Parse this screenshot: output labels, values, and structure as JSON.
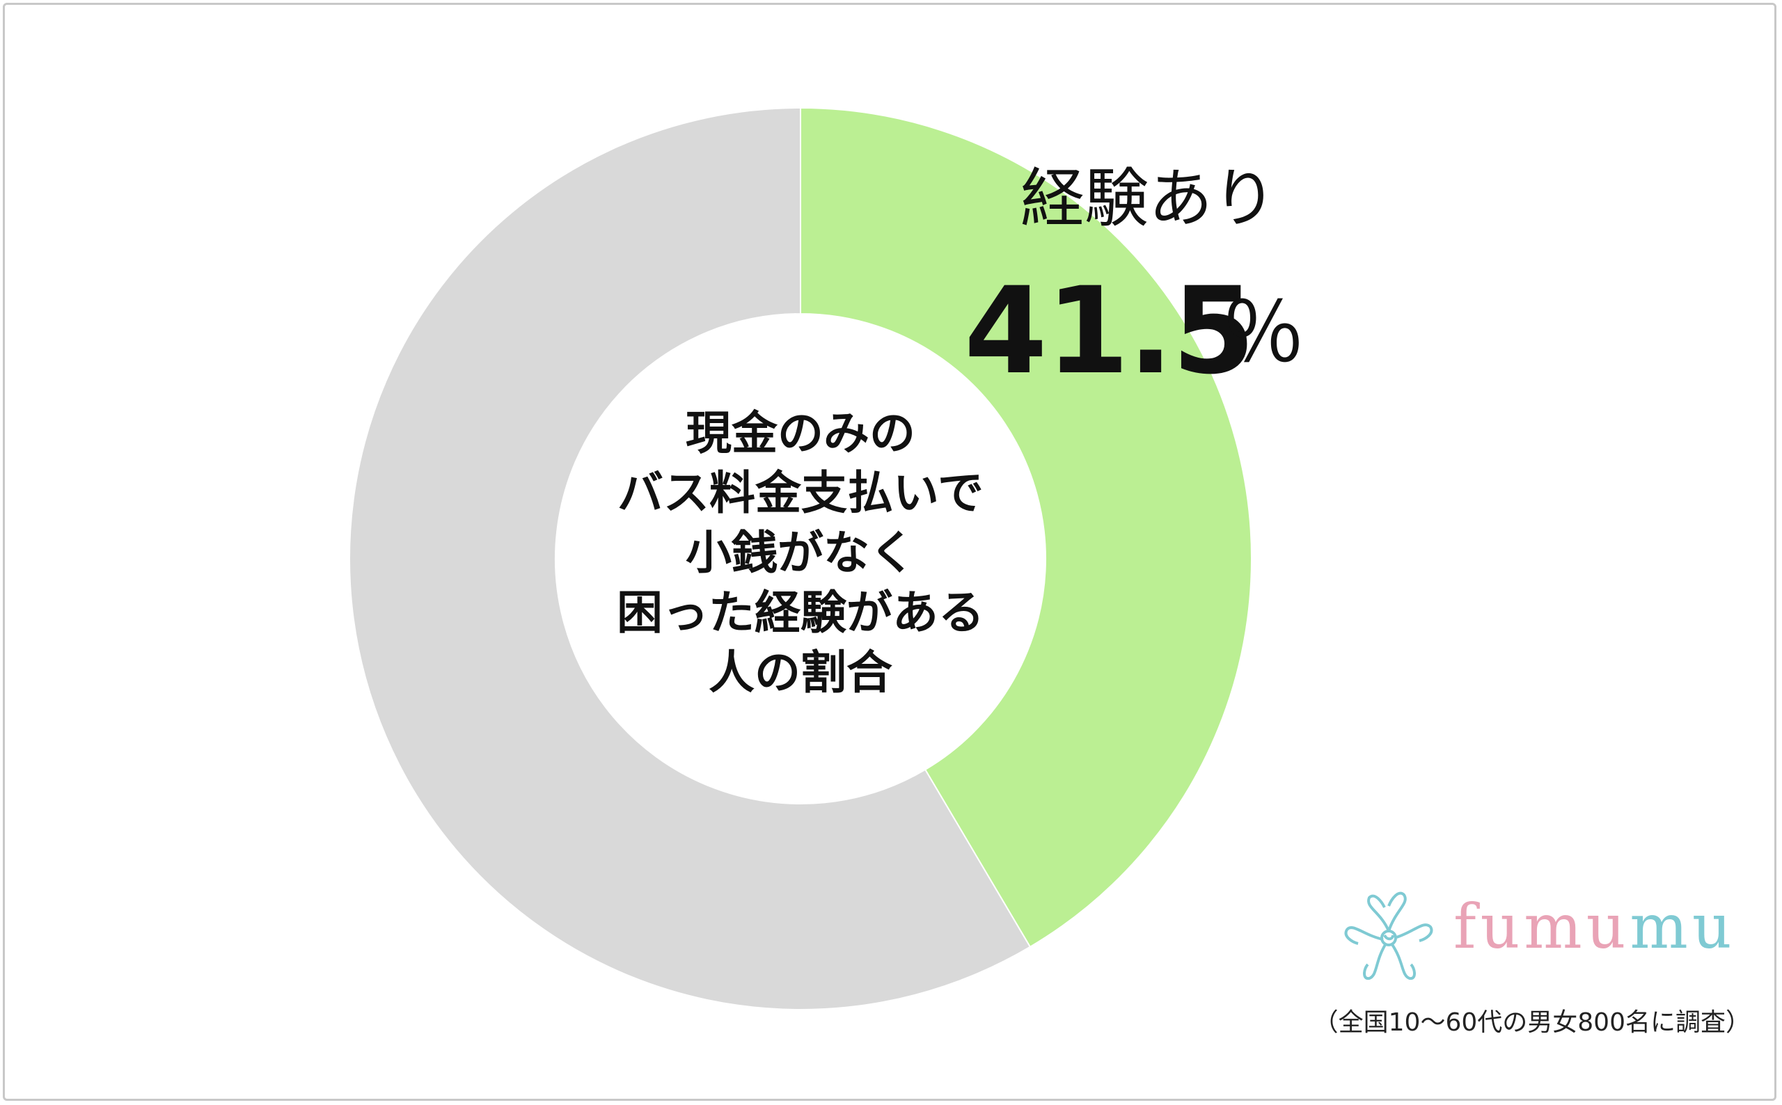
{
  "chart_data": {
    "type": "pie",
    "style": "donut",
    "center_label_lines": [
      "現金のみの",
      "バス料金支払いで",
      "小銭がなく",
      "困った経験がある",
      "人の割合"
    ],
    "slices": [
      {
        "name": "経験あり",
        "value": 41.5,
        "value_text": "41.5",
        "unit": "％",
        "color": "#bbef93"
      },
      {
        "name": "",
        "value": 58.5,
        "color": "#d9d9d9"
      }
    ],
    "start_angle_deg": 0,
    "direction": "clockwise"
  },
  "logo": {
    "brand_letters": [
      {
        "text": "f",
        "color": "#e9a3b6"
      },
      {
        "text": "u",
        "color": "#e9a3b6"
      },
      {
        "text": "m",
        "color": "#e9a3b6"
      },
      {
        "text": "u",
        "color": "#e9a3b6"
      },
      {
        "text": "m",
        "color": "#7fcad3"
      },
      {
        "text": "u",
        "color": "#7fcad3"
      }
    ],
    "icon": "flower-icon"
  },
  "footnote": "（全国10～60代の男女800名に調査）"
}
